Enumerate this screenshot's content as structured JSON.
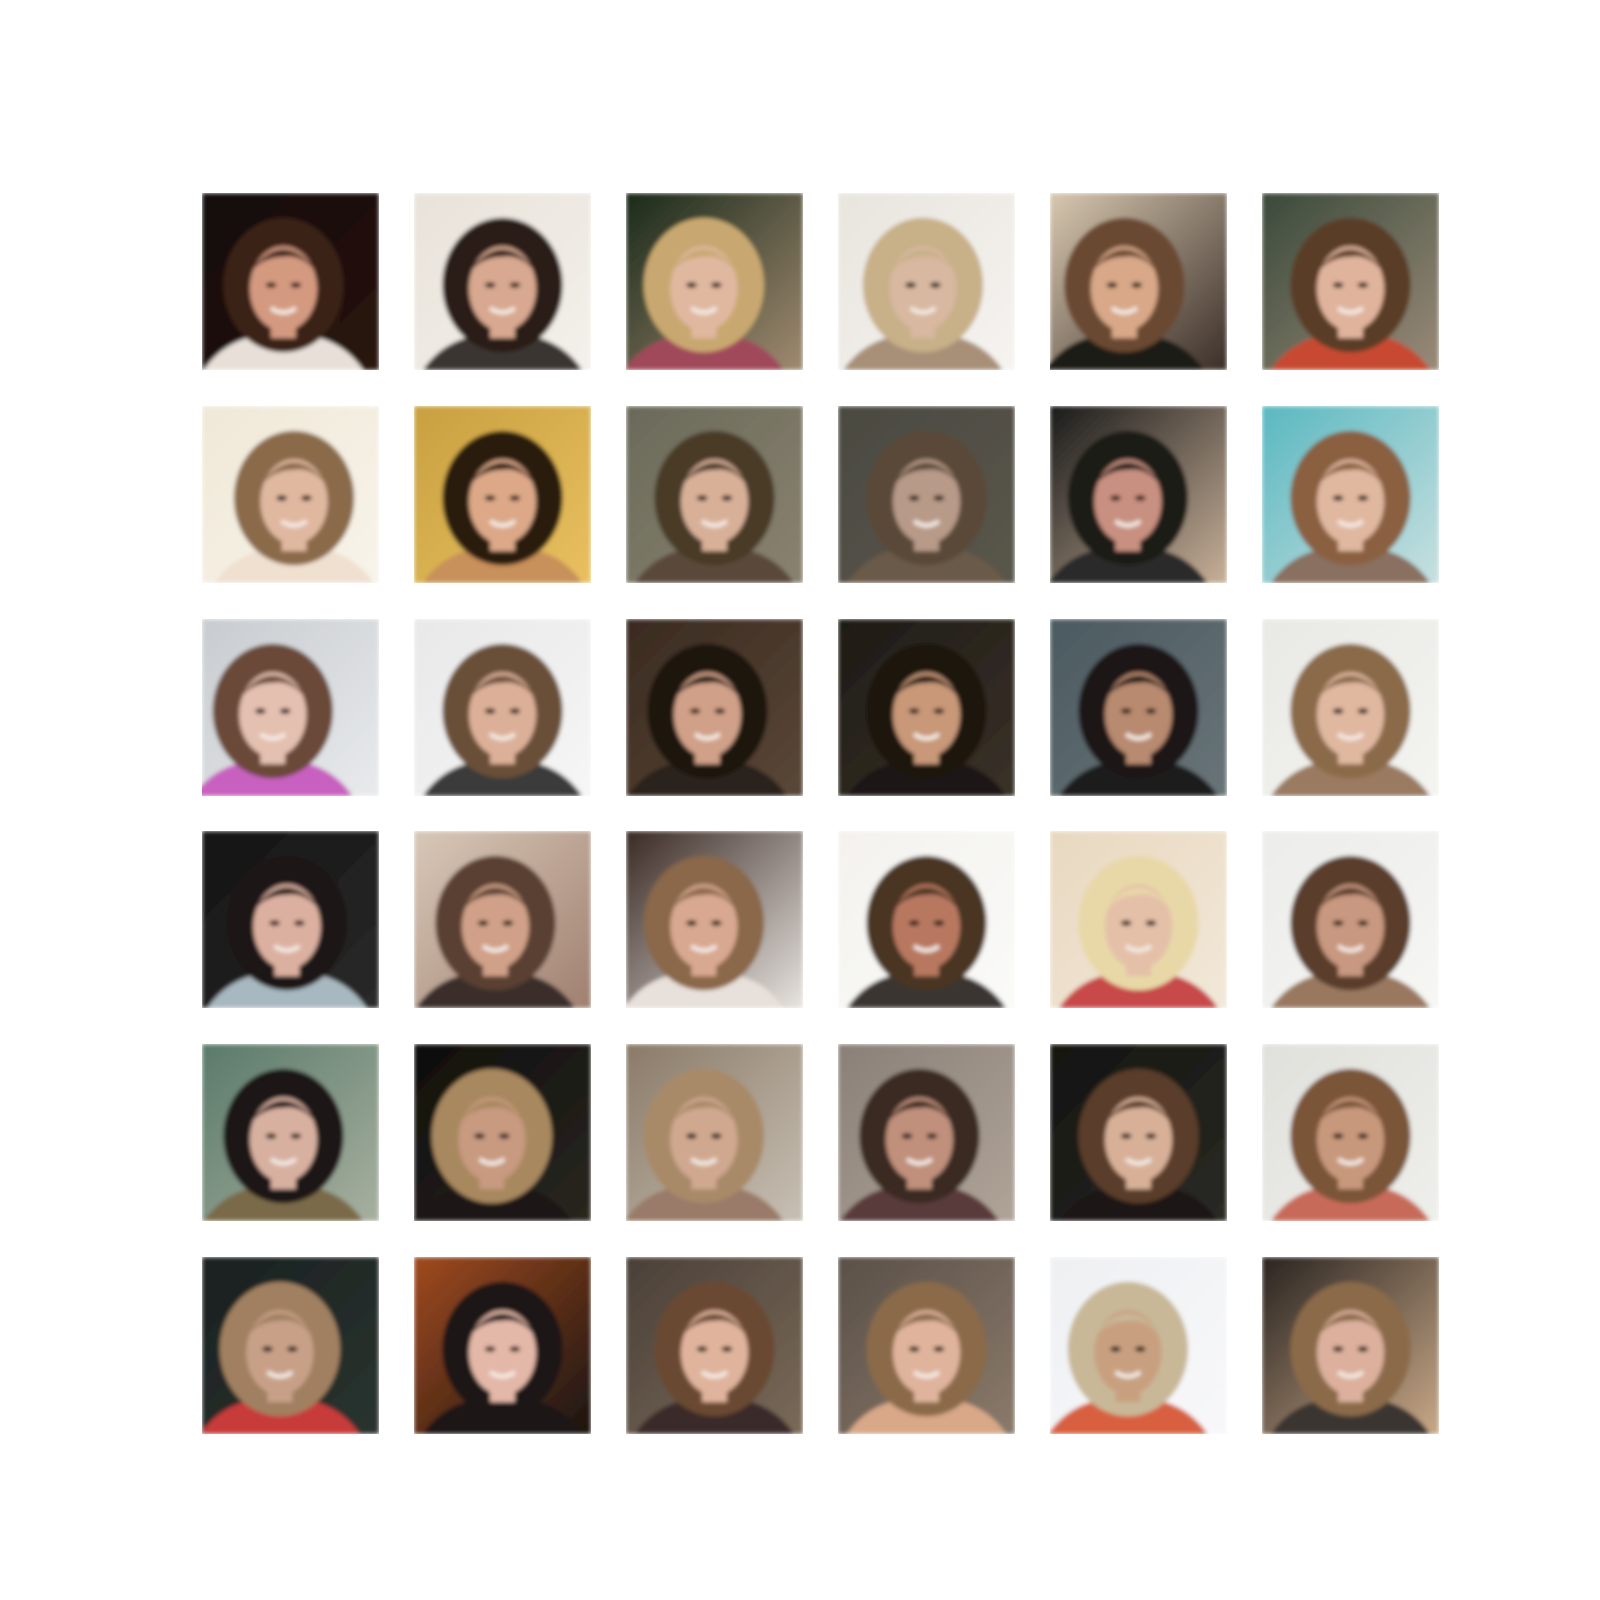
{
  "figure": {
    "rows": 6,
    "cols": 6,
    "tiles": [
      {
        "bg": [
          "#140a08",
          "#2a1410"
        ],
        "hair": "#3a2418",
        "skin": "#d49a80",
        "shirt": "#e8e0d8",
        "face_dx": -4
      },
      {
        "bg": [
          "#e8e2da",
          "#f4f0ea"
        ],
        "hair": "#2a1a12",
        "skin": "#d8a890",
        "shirt": "#3a3432",
        "face_dx": 0
      },
      {
        "bg": [
          "#1a2a1a",
          "#a08a70"
        ],
        "hair": "#c8a870",
        "skin": "#e0b8a0",
        "shirt": "#a04a5a",
        "face_dx": -6
      },
      {
        "bg": [
          "#e8e4de",
          "#f6f4f0"
        ],
        "hair": "#c8b088",
        "skin": "#d8b8a0",
        "shirt": "#a89078",
        "face_dx": -2
      },
      {
        "bg": [
          "#d8c8b0",
          "#3a2e28"
        ],
        "hair": "#6a4a30",
        "skin": "#d8a888",
        "shirt": "#1e1a18",
        "face_dx": -8
      },
      {
        "bg": [
          "#3a4a3a",
          "#9a8a78"
        ],
        "hair": "#5a3e28",
        "skin": "#e0b49c",
        "shirt": "#c84a30",
        "face_dx": 0
      },
      {
        "bg": [
          "#f0e8d8",
          "#f8f4ea"
        ],
        "hair": "#8a6a48",
        "skin": "#e0b8a0",
        "shirt": "#f0e0d0",
        "face_dx": 2
      },
      {
        "bg": [
          "#c8a040",
          "#e8c060"
        ],
        "hair": "#2a1a10",
        "skin": "#dca888",
        "shirt": "#c8905a",
        "face_dx": 0
      },
      {
        "bg": [
          "#6a6a5a",
          "#8a8270"
        ],
        "hair": "#4a3a28",
        "skin": "#d8b098",
        "shirt": "#5a4a3a",
        "face_dx": 0
      },
      {
        "bg": [
          "#4a4a42",
          "#5a564a"
        ],
        "hair": "#5a4a38",
        "skin": "#b89a88",
        "shirt": "#6a5a48",
        "face_dx": 0
      },
      {
        "bg": [
          "#1a1a1a",
          "#c8b098"
        ],
        "hair": "#1e1a18",
        "skin": "#c89080",
        "shirt": "#2a2a2a",
        "face_dx": -6
      },
      {
        "bg": [
          "#5ab8c0",
          "#c8e0e0"
        ],
        "hair": "#8a6040",
        "skin": "#e0b8a0",
        "shirt": "#8a7060",
        "face_dx": 0
      },
      {
        "bg": [
          "#c8ccd0",
          "#e8eaec"
        ],
        "hair": "#6a4a38",
        "skin": "#e4c0b0",
        "shirt": "#c860c0",
        "face_dx": -10
      },
      {
        "bg": [
          "#e8e8e8",
          "#f6f6f6"
        ],
        "hair": "#6a5038",
        "skin": "#dcb098",
        "shirt": "#3a3a3a",
        "face_dx": 0
      },
      {
        "bg": [
          "#3a2a20",
          "#5a4838"
        ],
        "hair": "#1e1410",
        "skin": "#d0a088",
        "shirt": "#2a241e",
        "face_dx": -4
      },
      {
        "bg": [
          "#1e1a16",
          "#3a3228"
        ],
        "hair": "#1a1410",
        "skin": "#c89878",
        "shirt": "#1a1612",
        "face_dx": 0
      },
      {
        "bg": [
          "#4a5a60",
          "#6a7478"
        ],
        "hair": "#1a1614",
        "skin": "#b88a70",
        "shirt": "#1a1a1e",
        "face_dx": 0
      },
      {
        "bg": [
          "#e8e8e4",
          "#f4f4f0"
        ],
        "hair": "#8a6a48",
        "skin": "#e0b8a0",
        "shirt": "#9a7a60",
        "face_dx": 0
      },
      {
        "bg": [
          "#141414",
          "#2a2a2a"
        ],
        "hair": "#1a1614",
        "skin": "#dcb0a0",
        "shirt": "#a8b8c0",
        "face_dx": -2
      },
      {
        "bg": [
          "#d8c8b8",
          "#a08070"
        ],
        "hair": "#5a4030",
        "skin": "#d0a088",
        "shirt": "#3a2e2a",
        "face_dx": -4
      },
      {
        "bg": [
          "#3a2a24",
          "#e8e4e0"
        ],
        "hair": "#8a6848",
        "skin": "#d8a890",
        "shirt": "#e8e0da",
        "face_dx": -6
      },
      {
        "bg": [
          "#f4f2ee",
          "#fafaf8"
        ],
        "hair": "#4a3424",
        "skin": "#b87860",
        "shirt": "#3a3430",
        "face_dx": 0
      },
      {
        "bg": [
          "#e8d8c0",
          "#f2e8d8"
        ],
        "hair": "#e8d8a8",
        "skin": "#e4c0a8",
        "shirt": "#c84848",
        "face_dx": 0
      },
      {
        "bg": [
          "#ecedea",
          "#f6f6f4"
        ],
        "hair": "#5a3e2a",
        "skin": "#c89880",
        "shirt": "#9a7860",
        "face_dx": 0
      },
      {
        "bg": [
          "#5a7a6a",
          "#a8b0a0"
        ],
        "hair": "#1e1612",
        "skin": "#d8b0a0",
        "shirt": "#7a6a48",
        "face_dx": -4
      },
      {
        "bg": [
          "#0e0e0c",
          "#2a2620"
        ],
        "hair": "#a8885e",
        "skin": "#c89a80",
        "shirt": "#1a1614",
        "face_dx": -6
      },
      {
        "bg": [
          "#8a7a68",
          "#c8c0b4"
        ],
        "hair": "#a88a68",
        "skin": "#d0a890",
        "shirt": "#9a7a68",
        "face_dx": -6
      },
      {
        "bg": [
          "#8a8078",
          "#b0a498"
        ],
        "hair": "#3a2a22",
        "skin": "#c0907c",
        "shirt": "#5a3a3a",
        "face_dx": -4
      },
      {
        "bg": [
          "#141410",
          "#2a2a24"
        ],
        "hair": "#5a3e2a",
        "skin": "#d8b098",
        "shirt": "#1a1614",
        "face_dx": 0
      },
      {
        "bg": [
          "#e0e0dc",
          "#eeeeea"
        ],
        "hair": "#7a5438",
        "skin": "#c8987c",
        "shirt": "#c86a5a",
        "face_dx": 0
      },
      {
        "bg": [
          "#1a2020",
          "#2a3430"
        ],
        "hair": "#a08060",
        "skin": "#c8a088",
        "shirt": "#c83a3a",
        "face_dx": -6
      },
      {
        "bg": [
          "#a04a20",
          "#1a1410"
        ],
        "hair": "#1a1614",
        "skin": "#e4b8a8",
        "shirt": "#1a1614",
        "face_dx": 0
      },
      {
        "bg": [
          "#4a4038",
          "#7a6a58"
        ],
        "hair": "#6a4a30",
        "skin": "#e0b49c",
        "shirt": "#3a2a2a",
        "face_dx": 0
      },
      {
        "bg": [
          "#5a5048",
          "#8a7a6a"
        ],
        "hair": "#8a6a48",
        "skin": "#e0b49c",
        "shirt": "#d8a888",
        "face_dx": 0
      },
      {
        "bg": [
          "#eef0f2",
          "#f8f8fa"
        ],
        "hair": "#c8b898",
        "skin": "#c8a080",
        "shirt": "#d86040",
        "face_dx": -6
      },
      {
        "bg": [
          "#2a2420",
          "#c8a888"
        ],
        "hair": "#8a6a4a",
        "skin": "#dcb09c",
        "shirt": "#3a3430",
        "face_dx": 0
      }
    ]
  }
}
